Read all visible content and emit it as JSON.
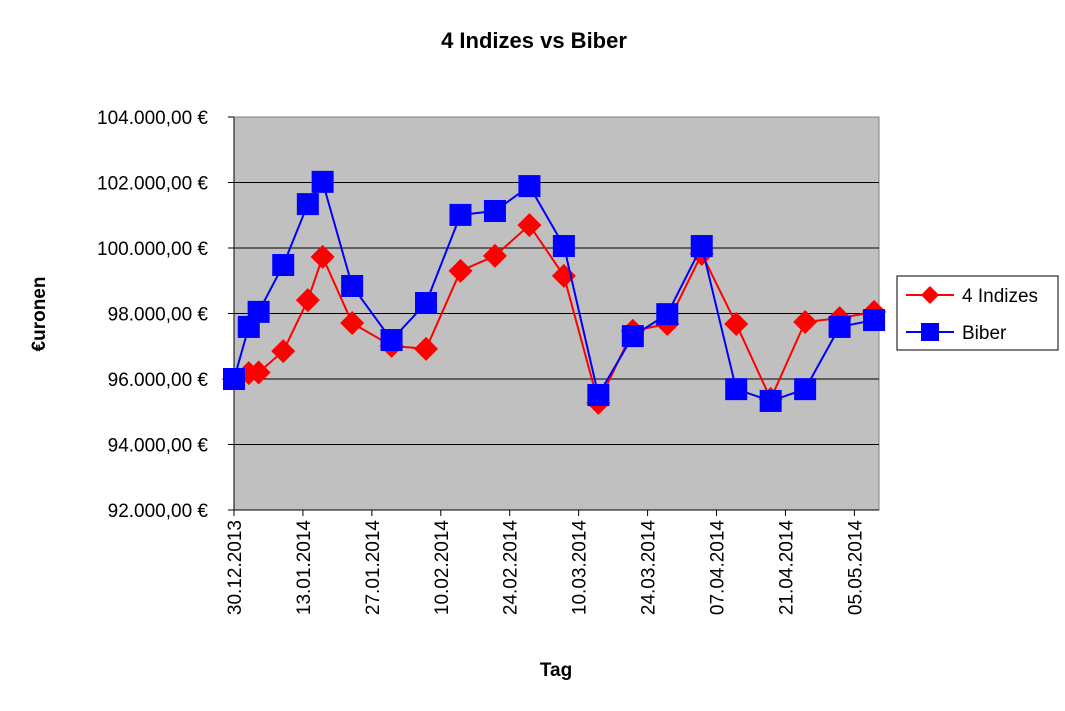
{
  "chart_data": {
    "type": "line",
    "title": "4 Indizes vs Biber",
    "xlabel": "Tag",
    "ylabel": "€uronen",
    "ylim": [
      92000,
      104000
    ],
    "xlim": [
      "30.12.2013",
      "10.05.2014"
    ],
    "yticks": [
      "92.000,00 €",
      "94.000,00 €",
      "96.000,00 €",
      "98.000,00 €",
      "100.000,00 €",
      "102.000,00 €",
      "104.000,00 €"
    ],
    "ytick_values": [
      92000,
      94000,
      96000,
      98000,
      100000,
      102000,
      104000
    ],
    "xticks": [
      "30.12.2013",
      "13.01.2014",
      "27.01.2014",
      "10.02.2014",
      "24.02.2014",
      "10.03.2014",
      "24.03.2014",
      "07.04.2014",
      "21.04.2014",
      "05.05.2014"
    ],
    "grid": "horizontal",
    "legend_placement": "right",
    "plot_background": "#c0c0c0",
    "x": [
      "30.12.2013",
      "02.01.2014",
      "04.01.2014",
      "09.01.2014",
      "14.01.2014",
      "17.01.2014",
      "23.01.2014",
      "31.01.2014",
      "07.02.2014",
      "14.02.2014",
      "21.02.2014",
      "28.02.2014",
      "07.03.2014",
      "14.03.2014",
      "21.03.2014",
      "28.03.2014",
      "04.04.2014",
      "11.04.2014",
      "18.04.2014",
      "25.04.2014",
      "02.05.2014",
      "09.05.2014"
    ],
    "series": [
      {
        "name": "4 Indizes",
        "color": "#ff0000",
        "marker": "diamond",
        "values": [
          96000,
          96180,
          96200,
          96850,
          98410,
          99730,
          97710,
          97010,
          96920,
          99300,
          99760,
          100700,
          99150,
          95270,
          97470,
          97680,
          99820,
          97680,
          95390,
          97740,
          97860,
          98050
        ]
      },
      {
        "name": "Biber",
        "color": "#0000ff",
        "marker": "square",
        "values": [
          96000,
          97590,
          98050,
          99480,
          101340,
          102020,
          98840,
          97190,
          98320,
          101010,
          101130,
          101890,
          100060,
          95510,
          97310,
          97980,
          100060,
          95690,
          95330,
          95690,
          97590,
          97800
        ]
      }
    ]
  }
}
